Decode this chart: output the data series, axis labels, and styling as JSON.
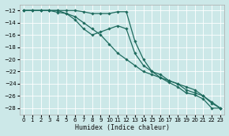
{
  "xlabel": "Humidex (Indice chaleur)",
  "background_color": "#cce8e8",
  "grid_color": "#ffffff",
  "line_color": "#1e6b5e",
  "xlim": [
    -0.5,
    23.5
  ],
  "ylim": [
    -29,
    -11
  ],
  "xticks": [
    0,
    1,
    2,
    3,
    4,
    5,
    6,
    7,
    8,
    9,
    10,
    11,
    12,
    13,
    14,
    15,
    16,
    17,
    18,
    19,
    20,
    21,
    22,
    23
  ],
  "yticks": [
    -28,
    -26,
    -24,
    -22,
    -20,
    -18,
    -16,
    -14,
    -12
  ],
  "series": [
    {
      "x": [
        0,
        1,
        2,
        3,
        4,
        5,
        6,
        7,
        8,
        9,
        10,
        11,
        12,
        13,
        14,
        15,
        16,
        17,
        18,
        19,
        20,
        21,
        22,
        23
      ],
      "y": [
        -12,
        -12,
        -12,
        -12,
        -12,
        -12,
        -12,
        -12.2,
        -12.5,
        -12.5,
        -12.5,
        -12.2,
        -12.2,
        -17,
        -20,
        -22,
        -23,
        -23.8,
        -24.5,
        -25.5,
        -25.8,
        -26.5,
        -28,
        -28
      ]
    },
    {
      "x": [
        0,
        1,
        2,
        3,
        4,
        5,
        6,
        7,
        8,
        9,
        10,
        11,
        12,
        13,
        14,
        15,
        16,
        17,
        18,
        19,
        20,
        21,
        22,
        23
      ],
      "y": [
        -12,
        -12,
        -12,
        -12,
        -12.3,
        -12.5,
        -13,
        -14,
        -15,
        -16,
        -17.5,
        -19,
        -20,
        -21,
        -22,
        -22.5,
        -23,
        -23.5,
        -24,
        -24.5,
        -25,
        -26,
        -27,
        -28
      ]
    },
    {
      "x": [
        0,
        1,
        2,
        3,
        4,
        5,
        6,
        7,
        8,
        9,
        10,
        11,
        12,
        13,
        14,
        15,
        16,
        17,
        18,
        19,
        20,
        21,
        22,
        23
      ],
      "y": [
        -12,
        -12,
        -12,
        -12,
        -12,
        -12.5,
        -13.5,
        -15,
        -16,
        -15.5,
        -15,
        -14.5,
        -15,
        -19,
        -21,
        -22,
        -22.5,
        -23.5,
        -24,
        -25,
        -25.5,
        -26,
        -27.2,
        -28
      ]
    }
  ]
}
